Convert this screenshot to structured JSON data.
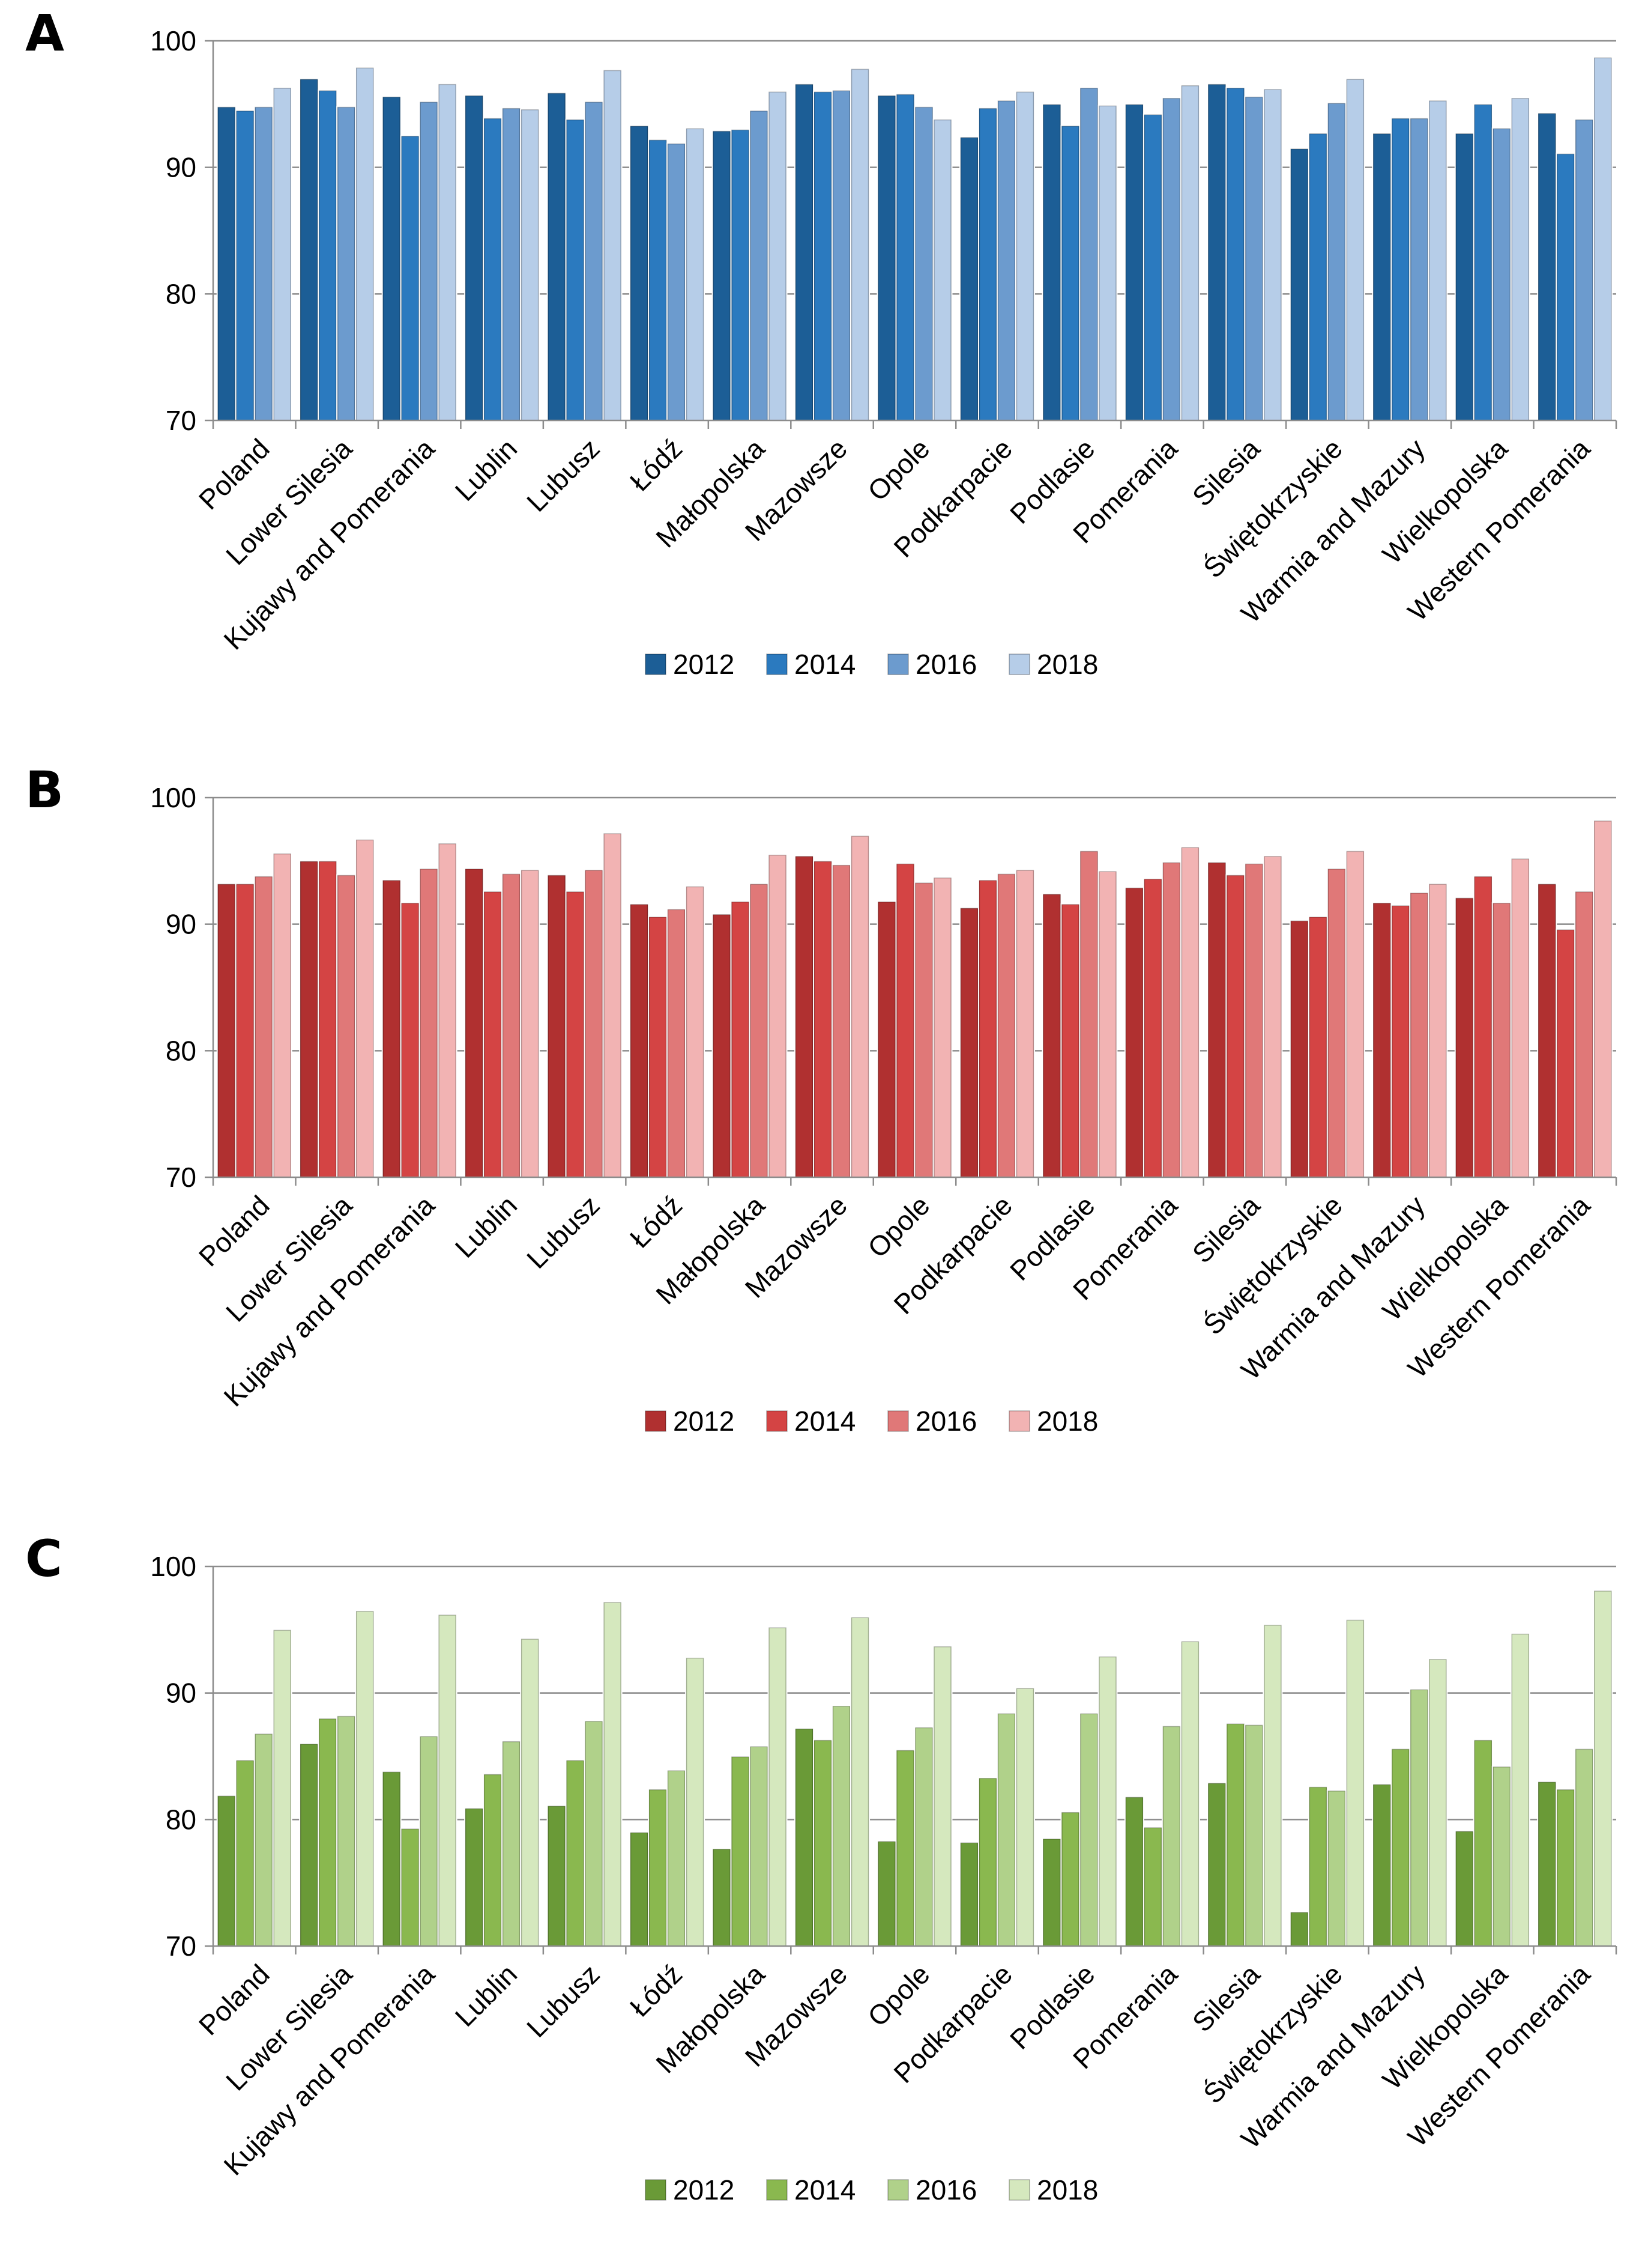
{
  "chart_data": [
    {
      "panel_label": "A",
      "type": "bar",
      "ylim": [
        70,
        100
      ],
      "yticks": [
        "70",
        "80",
        "90",
        "100"
      ],
      "grid": true,
      "legend_position": "bottom",
      "categories": [
        "Poland",
        "Lower Silesia",
        "Kujawy and Pomerania",
        "Lublin",
        "Lubusz",
        "Łódź",
        "Małopolska",
        "Mazowsze",
        "Opole",
        "Podkarpacie",
        "Podlasie",
        "Pomerania",
        "Silesia",
        "Świętokrzyskie",
        "Warmia and Mazury",
        "Wielkopolska",
        "Western Pomerania"
      ],
      "series": [
        {
          "name": "2012",
          "color": "#1c5e96",
          "values": [
            94.8,
            97.0,
            95.6,
            95.7,
            95.9,
            93.3,
            92.9,
            96.6,
            95.7,
            92.4,
            95.0,
            95.0,
            96.6,
            91.5,
            92.7,
            92.7,
            94.3
          ]
        },
        {
          "name": "2014",
          "color": "#2b7abf",
          "values": [
            94.5,
            96.1,
            92.5,
            93.9,
            93.8,
            92.2,
            93.0,
            96.0,
            95.8,
            94.7,
            93.3,
            94.2,
            96.3,
            92.7,
            93.9,
            95.0,
            91.1
          ]
        },
        {
          "name": "2016",
          "color": "#6c9bce",
          "values": [
            94.8,
            94.8,
            95.2,
            94.7,
            95.2,
            91.9,
            94.5,
            96.1,
            94.8,
            95.3,
            96.3,
            95.5,
            95.6,
            95.1,
            93.9,
            93.1,
            93.8
          ]
        },
        {
          "name": "2018",
          "color": "#b6cde8",
          "values": [
            96.3,
            97.9,
            96.6,
            94.6,
            97.7,
            93.1,
            96.0,
            97.8,
            93.8,
            96.0,
            94.9,
            96.5,
            96.2,
            97.0,
            95.3,
            95.5,
            98.7
          ]
        }
      ]
    },
    {
      "panel_label": "B",
      "type": "bar",
      "ylim": [
        70,
        100
      ],
      "yticks": [
        "70",
        "80",
        "90",
        "100"
      ],
      "grid": true,
      "legend_position": "bottom",
      "categories": [
        "Poland",
        "Lower Silesia",
        "Kujawy and Pomerania",
        "Lublin",
        "Lubusz",
        "Łódź",
        "Małopolska",
        "Mazowsze",
        "Opole",
        "Podkarpacie",
        "Podlasie",
        "Pomerania",
        "Silesia",
        "Świętokrzyskie",
        "Warmia and Mazury",
        "Wielkopolska",
        "Western Pomerania"
      ],
      "series": [
        {
          "name": "2012",
          "color": "#b03030",
          "values": [
            93.2,
            95.0,
            93.5,
            94.4,
            93.9,
            91.6,
            90.8,
            95.4,
            91.8,
            91.3,
            92.4,
            92.9,
            94.9,
            90.3,
            91.7,
            92.1,
            93.2
          ]
        },
        {
          "name": "2014",
          "color": "#d44444",
          "values": [
            93.2,
            95.0,
            91.7,
            92.6,
            92.6,
            90.6,
            91.8,
            95.0,
            94.8,
            93.5,
            91.6,
            93.6,
            93.9,
            90.6,
            91.5,
            93.8,
            89.6
          ]
        },
        {
          "name": "2016",
          "color": "#e07878",
          "values": [
            93.8,
            93.9,
            94.4,
            94.0,
            94.3,
            91.2,
            93.2,
            94.7,
            93.3,
            94.0,
            95.8,
            94.9,
            94.8,
            94.4,
            92.5,
            91.7,
            92.6
          ]
        },
        {
          "name": "2018",
          "color": "#f2b3b3",
          "values": [
            95.6,
            96.7,
            96.4,
            94.3,
            97.2,
            93.0,
            95.5,
            97.0,
            93.7,
            94.3,
            94.2,
            96.1,
            95.4,
            95.8,
            93.2,
            95.2,
            98.2
          ]
        }
      ]
    },
    {
      "panel_label": "C",
      "type": "bar",
      "ylim": [
        70,
        100
      ],
      "yticks": [
        "70",
        "80",
        "90",
        "100"
      ],
      "grid": true,
      "legend_position": "bottom",
      "categories": [
        "Poland",
        "Lower Silesia",
        "Kujawy and Pomerania",
        "Lublin",
        "Lubusz",
        "Łódź",
        "Małopolska",
        "Mazowsze",
        "Opole",
        "Podkarpacie",
        "Podlasie",
        "Pomerania",
        "Silesia",
        "Świętokrzyskie",
        "Warmia and Mazury",
        "Wielkopolska",
        "Western Pomerania"
      ],
      "series": [
        {
          "name": "2012",
          "color": "#6a9a37",
          "values": [
            81.9,
            86.0,
            83.8,
            80.9,
            81.1,
            79.0,
            77.7,
            87.2,
            78.3,
            78.2,
            78.5,
            81.8,
            82.9,
            72.7,
            82.8,
            79.1,
            83.0
          ]
        },
        {
          "name": "2014",
          "color": "#8ab84f",
          "values": [
            84.7,
            88.0,
            79.3,
            83.6,
            84.7,
            82.4,
            85.0,
            86.3,
            85.5,
            83.3,
            80.6,
            79.4,
            87.6,
            82.6,
            85.6,
            86.3,
            82.4
          ]
        },
        {
          "name": "2016",
          "color": "#b0d18a",
          "values": [
            86.8,
            88.2,
            86.6,
            86.2,
            87.8,
            83.9,
            85.8,
            89.0,
            87.3,
            88.4,
            88.4,
            87.4,
            87.5,
            82.3,
            90.3,
            84.2,
            85.6
          ]
        },
        {
          "name": "2018",
          "color": "#d5e8be",
          "values": [
            95.0,
            96.5,
            96.2,
            94.3,
            97.2,
            92.8,
            95.2,
            96.0,
            93.7,
            90.4,
            92.9,
            94.1,
            95.4,
            95.8,
            92.7,
            94.7,
            98.1
          ]
        }
      ]
    }
  ]
}
